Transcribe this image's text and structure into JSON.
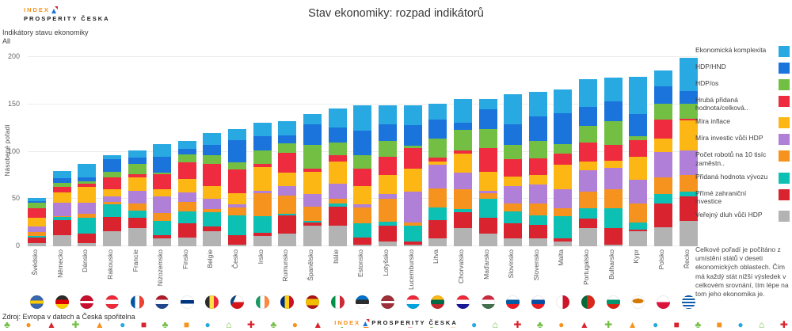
{
  "header": {
    "logo_line1": "INDEX",
    "logo_line2": "PROSPERITY ČESKA",
    "subtitle_line1": "Indikátory stavu ekonomiky",
    "subtitle_line2": "All",
    "title": "Stav ekonomiky: rozpad indikátorů"
  },
  "chart_data": {
    "type": "bar",
    "stacked": true,
    "title": "Stav ekonomiky: rozpad indikátorů",
    "xlabel": "",
    "ylabel": "Násobené pořadí",
    "yticks": [
      0,
      50,
      100,
      150,
      200
    ],
    "ylim": [
      0,
      210
    ],
    "grid": "horizontal",
    "legend_position": "right",
    "categories": [
      "Švédsko",
      "Německo",
      "Dánsko",
      "Rakousko",
      "Francie",
      "Nizozemsko",
      "Finsko",
      "Belgie",
      "Česko",
      "Irsko",
      "Rumunsko",
      "Španělsko",
      "Itálie",
      "Estonsko",
      "Lotyšsko",
      "Lucembursko",
      "Litva",
      "Chorvatsko",
      "Maďarsko",
      "Slovinsko",
      "Slovensko",
      "Malta",
      "Portugalsko",
      "Bulharsko",
      "Kypr",
      "Polsko",
      "Řecko"
    ],
    "series_order": "bottom_to_top",
    "series": [
      {
        "name": "Veřejný dluh vůči HDP",
        "color": "#b3b3b3",
        "values": [
          3,
          12,
          3,
          16,
          19,
          8,
          9,
          16,
          2,
          11,
          13,
          22,
          22,
          2,
          5,
          2,
          8,
          19,
          13,
          8,
          8,
          5,
          19,
          2,
          16,
          20,
          27
        ]
      },
      {
        "name": "Přímé zahraniční investice",
        "color": "#d9232e",
        "values": [
          6,
          16,
          10,
          15,
          11,
          4,
          15,
          5,
          10,
          3,
          20,
          3,
          20,
          7,
          17,
          3,
          20,
          17,
          17,
          16,
          15,
          3,
          10,
          17,
          2,
          25,
          26
        ]
      },
      {
        "name": "Přidaná hodnota vývozu",
        "color": "#0cc0b4",
        "values": [
          2,
          3,
          17,
          13,
          8,
          15,
          13,
          15,
          21,
          18,
          1,
          2,
          3,
          15,
          4,
          17,
          13,
          3,
          20,
          13,
          10,
          24,
          11,
          21,
          7,
          10,
          5
        ]
      },
      {
        "name": "Počet robotů na 10 tisíc zaměstn..",
        "color": "#f6921e",
        "values": [
          4,
          1,
          4,
          3,
          7,
          8,
          10,
          3,
          8,
          24,
          20,
          15,
          5,
          17,
          24,
          3,
          20,
          21,
          6,
          8,
          12,
          8,
          18,
          20,
          20,
          18,
          17
        ]
      },
      {
        "name": "Míra investic vůči HDP",
        "color": "#b07fd8",
        "values": [
          6,
          14,
          12,
          6,
          14,
          18,
          10,
          11,
          3,
          3,
          10,
          13,
          16,
          3,
          5,
          33,
          25,
          18,
          3,
          19,
          20,
          20,
          22,
          23,
          25,
          27,
          26
        ]
      },
      {
        "name": "Míra inflace",
        "color": "#fdb714",
        "values": [
          9,
          11,
          17,
          7,
          14,
          7,
          14,
          14,
          12,
          25,
          14,
          24,
          24,
          20,
          20,
          24,
          4,
          20,
          20,
          10,
          10,
          26,
          10,
          7,
          25,
          14,
          32
        ]
      },
      {
        "name": "Hrubá přidaná hodnota/celková..",
        "color": "#ee2b3f",
        "values": [
          10,
          6,
          3,
          13,
          3,
          16,
          18,
          23,
          25,
          3,
          21,
          3,
          6,
          18,
          20,
          22,
          4,
          3,
          25,
          18,
          18,
          12,
          20,
          17,
          17,
          20,
          2
        ]
      },
      {
        "name": "HDP/os",
        "color": "#72bf44",
        "values": [
          6,
          4,
          3,
          6,
          11,
          2,
          8,
          9,
          8,
          14,
          10,
          25,
          14,
          14,
          16,
          2,
          20,
          22,
          20,
          15,
          18,
          10,
          17,
          25,
          4,
          17,
          16
        ]
      },
      {
        "name": "HDP/HND",
        "color": "#1b74dc",
        "values": [
          2,
          5,
          4,
          13,
          7,
          17,
          6,
          11,
          23,
          15,
          8,
          22,
          16,
          26,
          18,
          22,
          20,
          8,
          21,
          22,
          26,
          33,
          20,
          21,
          24,
          18,
          13
        ]
      },
      {
        "name": "Ekonomická komplexita",
        "color": "#29a9e1",
        "values": [
          3,
          8,
          14,
          4,
          7,
          13,
          8,
          13,
          12,
          15,
          15,
          11,
          20,
          27,
          20,
          21,
          17,
          25,
          11,
          32,
          26,
          25,
          30,
          25,
          39,
          17,
          35
        ]
      }
    ]
  },
  "note": {
    "text": "Celkové pořadí je počítáno z umístění států v deseti ekonomických oblastech. Čím má každý stát nižší výsledek v celkovém srovnání, tím lépe na tom jeho ekonomika je."
  },
  "source": {
    "text": "Zdroj: Evropa v datech a Česká spořitelna"
  },
  "footer_logo": {
    "part1": "INDEX",
    "part2": "PROSPERITY ČESKA"
  },
  "flags": [
    {
      "country": "Švédsko",
      "bg": "linear-gradient(180deg,#3a66ae 38%,#fecb00 38% 62%,#3a66ae 62%)"
    },
    {
      "country": "Německo",
      "bg": "linear-gradient(180deg,#2b2b2b 33%,#dd0000 33% 66%,#ffce00 66%)"
    },
    {
      "country": "Dánsko",
      "bg": "linear-gradient(180deg,#c8102e 40%,#fff 40% 60%,#c8102e 60%)"
    },
    {
      "country": "Rakousko",
      "bg": "linear-gradient(180deg,#ed2939 33%,#fff 33% 66%,#ed2939 66%)"
    },
    {
      "country": "Francie",
      "bg": "linear-gradient(90deg,#0055a4 33%,#fff 33% 66%,#ef4135 66%)"
    },
    {
      "country": "Nizozemsko",
      "bg": "linear-gradient(180deg,#ae1c28 33%,#fff 33% 66%,#21468b 66%)"
    },
    {
      "country": "Finsko",
      "bg": "linear-gradient(180deg,#fff 36%,#003580 36% 62%,#fff 62%)"
    },
    {
      "country": "Belgie",
      "bg": "linear-gradient(90deg,#2b2b2b 33%,#fae042 33% 66%,#ed2939 66%)"
    },
    {
      "country": "Česko",
      "bg": "linear-gradient(115deg,#11457e 30%,rgba(0,0,0,0) 30%),linear-gradient(180deg,#fff 50%,#d7141a 50%)"
    },
    {
      "country": "Irsko",
      "bg": "linear-gradient(90deg,#169b62 33%,#fff 33% 66%,#ff883e 66%)"
    },
    {
      "country": "Rumunsko",
      "bg": "linear-gradient(90deg,#002b7f 33%,#fcd116 33% 66%,#ce1126 66%)"
    },
    {
      "country": "Španělsko",
      "bg": "linear-gradient(180deg,#aa151b 27%,#f1bf00 27% 73%,#aa151b 73%)"
    },
    {
      "country": "Itálie",
      "bg": "linear-gradient(90deg,#009246 33%,#fff 33% 66%,#ce2b37 66%)"
    },
    {
      "country": "Estonsko",
      "bg": "linear-gradient(180deg,#0072ce 33%,#2b2b2b 33% 66%,#fff 66%)"
    },
    {
      "country": "Lotyšsko",
      "bg": "linear-gradient(180deg,#9e3039 40%,#fff 40% 60%,#9e3039 60%)"
    },
    {
      "country": "Lucembursko",
      "bg": "linear-gradient(180deg,#ed2939 33%,#fff 33% 66%,#00a3e0 66%)"
    },
    {
      "country": "Litva",
      "bg": "linear-gradient(180deg,#fdb913 33%,#006a44 33% 66%,#c1272d 66%)"
    },
    {
      "country": "Chorvatsko",
      "bg": "linear-gradient(180deg,#ed2939 33%,#fff 33% 66%,#171796 66%)"
    },
    {
      "country": "Maďarsko",
      "bg": "linear-gradient(180deg,#cd2a3e 33%,#fff 33% 66%,#436f4d 66%)"
    },
    {
      "country": "Slovinsko",
      "bg": "linear-gradient(180deg,#fff 33%,#005da4 33% 66%,#ed1c24 66%)"
    },
    {
      "country": "Slovensko",
      "bg": "linear-gradient(180deg,#fff 33%,#0b4ea2 33% 66%,#ee1c25 66%)"
    },
    {
      "country": "Malta",
      "bg": "linear-gradient(90deg,#fff 50%,#cf142b 50%)"
    },
    {
      "country": "Portugalsko",
      "bg": "linear-gradient(90deg,#046a38 40%,#da291c 40%)"
    },
    {
      "country": "Bulharsko",
      "bg": "linear-gradient(180deg,#fff 33%,#00966e 33% 66%,#d62612 66%)"
    },
    {
      "country": "Kypr",
      "bg": "radial-gradient(ellipse 7px 3px at 50% 42%,#d57800 98%,rgba(0,0,0,0) 100%),linear-gradient(#fff,#fff)"
    },
    {
      "country": "Polsko",
      "bg": "linear-gradient(180deg,#fff 50%,#dc143c 50%)"
    },
    {
      "country": "Řecko",
      "bg": "repeating-linear-gradient(180deg,#0d5eaf 0 2px,#fff 2px 4px)"
    }
  ],
  "icon_strip": {
    "pattern": [
      {
        "glyph": "♣",
        "color": "#72bf44",
        "name": "tree-icon"
      },
      {
        "glyph": "●",
        "color": "#f6921e",
        "name": "sun-icon"
      },
      {
        "glyph": "▲",
        "color": "#d9232e",
        "name": "mountain-icon"
      },
      {
        "glyph": "✚",
        "color": "#72bf44",
        "name": "ferris-wheel-icon"
      },
      {
        "glyph": "▲",
        "color": "#f6921e",
        "name": "flame-icon"
      },
      {
        "glyph": "●",
        "color": "#29a9e1",
        "name": "fountain-icon"
      },
      {
        "glyph": "■",
        "color": "#d9232e",
        "name": "building-icon"
      },
      {
        "glyph": "♣",
        "color": "#72bf44",
        "name": "tree-icon"
      },
      {
        "glyph": "■",
        "color": "#f6921e",
        "name": "skyline-icon"
      },
      {
        "glyph": "●",
        "color": "#29a9e1",
        "name": "globe-icon"
      },
      {
        "glyph": "⌂",
        "color": "#72bf44",
        "name": "car-icon"
      },
      {
        "glyph": "✚",
        "color": "#d9232e",
        "name": "railway-icon"
      }
    ],
    "repeat": 3
  }
}
